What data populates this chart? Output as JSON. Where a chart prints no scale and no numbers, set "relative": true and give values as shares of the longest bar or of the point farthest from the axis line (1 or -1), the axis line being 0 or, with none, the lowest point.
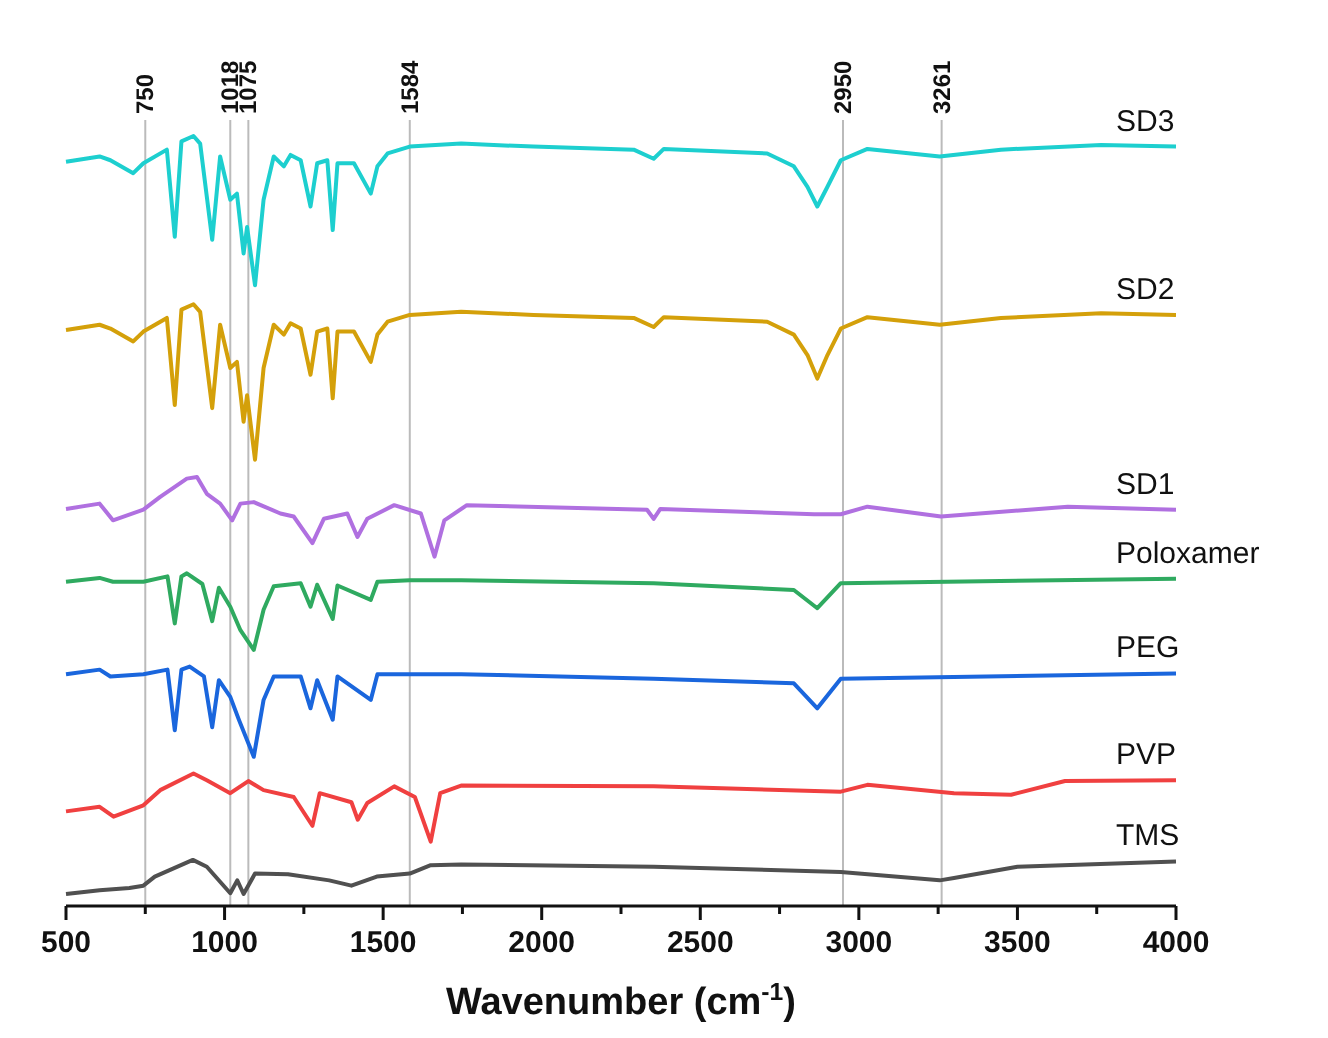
{
  "chart_data": {
    "type": "line",
    "relative": true,
    "xlabel": "Wavenumber (cm$^{-1}$)",
    "xlim": [
      500,
      4000
    ],
    "xticks": [
      500,
      {
        "value": 750,
        "label": null
      },
      1000,
      {
        "value": 1250,
        "label": null
      },
      1500,
      {
        "value": 1750,
        "label": null
      },
      2000,
      {
        "value": 2250,
        "label": null
      },
      2500,
      {
        "value": 2750,
        "label": null
      },
      3000,
      {
        "value": 3250,
        "label": null
      },
      3500,
      {
        "value": 3750,
        "label": null
      },
      4000
    ],
    "tick_labels": "x",
    "marker": "none",
    "ref_lines": [
      {
        "axis": "x",
        "value": 750,
        "label": "750",
        "color": "#bbbbbb"
      },
      {
        "axis": "x",
        "value": 1018,
        "label": "1018",
        "color": "#bbbbbb"
      },
      {
        "axis": "x",
        "value": 1075,
        "label": "1075",
        "color": "#bbbbbb"
      },
      {
        "axis": "x",
        "value": 1584,
        "label": "1584",
        "color": "#bbbbbb"
      },
      {
        "axis": "x",
        "value": 2950,
        "label": "2950",
        "color": "#bbbbbb"
      },
      {
        "axis": "x",
        "value": 3261,
        "label": "3261",
        "color": "#bbbbbb"
      }
    ],
    "series": [
      {
        "name": "SD3",
        "color": "#1dcfcf",
        "x": [
          500,
          606,
          640,
          712,
          744,
          818,
          843,
          864,
          902,
          923,
          961,
          986,
          1018,
          1039,
          1060,
          1071,
          1096,
          1123,
          1155,
          1187,
          1208,
          1240,
          1271,
          1292,
          1324,
          1341,
          1356,
          1408,
          1461,
          1482,
          1514,
          1584,
          1746,
          1974,
          2290,
          2353,
          2385,
          2711,
          2795,
          2838,
          2869,
          2901,
          2943,
          3027,
          3255,
          3448,
          3764,
          4000
        ],
        "values": [
          0.966,
          0.973,
          0.968,
          0.951,
          0.964,
          0.982,
          0.867,
          0.993,
          1,
          0.99,
          0.863,
          0.973,
          0.916,
          0.924,
          0.845,
          0.88,
          0.803,
          0.916,
          0.973,
          0.96,
          0.975,
          0.968,
          0.907,
          0.964,
          0.968,
          0.876,
          0.964,
          0.964,
          0.924,
          0.96,
          0.977,
          0.986,
          0.99,
          0.986,
          0.982,
          0.97,
          0.983,
          0.977,
          0.96,
          0.933,
          0.907,
          0.933,
          0.968,
          0.983,
          0.973,
          0.982,
          0.988,
          0.986
        ]
      },
      {
        "name": "SD2",
        "color": "#d4a00a",
        "x": [
          500,
          606,
          640,
          712,
          744,
          818,
          843,
          864,
          902,
          923,
          961,
          986,
          1018,
          1039,
          1060,
          1071,
          1096,
          1123,
          1155,
          1187,
          1208,
          1240,
          1271,
          1292,
          1324,
          1341,
          1356,
          1408,
          1461,
          1482,
          1514,
          1584,
          1746,
          1974,
          2290,
          2353,
          2385,
          2711,
          2795,
          2838,
          2869,
          2901,
          2943,
          3027,
          3255,
          3448,
          3764,
          4000
        ],
        "values": [
          0.744,
          0.751,
          0.746,
          0.729,
          0.742,
          0.76,
          0.645,
          0.771,
          0.778,
          0.768,
          0.641,
          0.751,
          0.694,
          0.702,
          0.623,
          0.658,
          0.573,
          0.694,
          0.751,
          0.738,
          0.753,
          0.746,
          0.685,
          0.742,
          0.746,
          0.654,
          0.742,
          0.742,
          0.702,
          0.738,
          0.755,
          0.764,
          0.768,
          0.764,
          0.76,
          0.748,
          0.761,
          0.755,
          0.738,
          0.711,
          0.68,
          0.711,
          0.746,
          0.761,
          0.751,
          0.76,
          0.766,
          0.764
        ]
      },
      {
        "name": "SD1",
        "color": "#b070e0",
        "x": [
          500,
          606,
          648,
          744,
          797,
          881,
          913,
          944,
          986,
          1024,
          1050,
          1092,
          1176,
          1218,
          1277,
          1313,
          1387,
          1419,
          1450,
          1535,
          1619,
          1662,
          1693,
          1764,
          2332,
          2353,
          2374,
          2859,
          2943,
          3027,
          3259,
          3659,
          4000
        ],
        "values": [
          0.508,
          0.515,
          0.493,
          0.507,
          0.524,
          0.548,
          0.55,
          0.528,
          0.515,
          0.493,
          0.515,
          0.517,
          0.502,
          0.498,
          0.463,
          0.495,
          0.502,
          0.471,
          0.495,
          0.513,
          0.502,
          0.445,
          0.493,
          0.513,
          0.507,
          0.495,
          0.508,
          0.501,
          0.501,
          0.511,
          0.498,
          0.511,
          0.507
        ]
      },
      {
        "name": "Poloxamer",
        "color": "#2faa60",
        "x": [
          500,
          606,
          648,
          744,
          820,
          843,
          864,
          881,
          930,
          961,
          982,
          1018,
          1050,
          1092,
          1123,
          1155,
          1240,
          1271,
          1292,
          1341,
          1356,
          1461,
          1482,
          1584,
          1746,
          2353,
          2795,
          2869,
          2943,
          4000
        ],
        "values": [
          0.412,
          0.417,
          0.412,
          0.412,
          0.419,
          0.357,
          0.419,
          0.423,
          0.409,
          0.36,
          0.404,
          0.379,
          0.348,
          0.322,
          0.375,
          0.406,
          0.41,
          0.379,
          0.408,
          0.363,
          0.407,
          0.388,
          0.412,
          0.414,
          0.414,
          0.41,
          0.401,
          0.377,
          0.41,
          0.416
        ]
      },
      {
        "name": "PEG",
        "color": "#1a66dd",
        "x": [
          500,
          606,
          640,
          744,
          820,
          843,
          864,
          890,
          935,
          961,
          982,
          1018,
          1045,
          1092,
          1123,
          1155,
          1240,
          1271,
          1292,
          1341,
          1356,
          1461,
          1482,
          1746,
          2353,
          2795,
          2869,
          2943,
          4000
        ],
        "values": [
          0.29,
          0.296,
          0.287,
          0.29,
          0.296,
          0.216,
          0.296,
          0.3,
          0.287,
          0.22,
          0.282,
          0.26,
          0.23,
          0.181,
          0.256,
          0.287,
          0.287,
          0.245,
          0.282,
          0.23,
          0.287,
          0.256,
          0.29,
          0.29,
          0.284,
          0.278,
          0.245,
          0.284,
          0.291
        ]
      },
      {
        "name": "PVP",
        "color": "#f04040",
        "x": [
          500,
          606,
          650,
          744,
          797,
          902,
          944,
          1018,
          1075,
          1123,
          1218,
          1277,
          1300,
          1400,
          1420,
          1450,
          1535,
          1600,
          1650,
          1680,
          1746,
          2353,
          2943,
          3027,
          3300,
          3480,
          3650,
          4000
        ],
        "values": [
          0.109,
          0.115,
          0.102,
          0.117,
          0.137,
          0.159,
          0.15,
          0.133,
          0.149,
          0.137,
          0.128,
          0.09,
          0.133,
          0.121,
          0.098,
          0.12,
          0.142,
          0.128,
          0.069,
          0.133,
          0.143,
          0.142,
          0.135,
          0.144,
          0.133,
          0.131,
          0.149,
          0.15
        ]
      },
      {
        "name": "TMS",
        "color": "#505050",
        "x": [
          500,
          606,
          700,
          744,
          780,
          900,
          944,
          1018,
          1040,
          1060,
          1096,
          1200,
          1330,
          1400,
          1480,
          1584,
          1650,
          1746,
          2353,
          2943,
          3255,
          3300,
          3500,
          4000
        ],
        "values": [
          0,
          0.005,
          0.008,
          0.011,
          0.023,
          0.045,
          0.036,
          0.001,
          0.018,
          0,
          0.027,
          0.026,
          0.018,
          0.011,
          0.023,
          0.027,
          0.038,
          0.039,
          0.036,
          0.029,
          0.018,
          0.021,
          0.036,
          0.043
        ]
      }
    ]
  }
}
